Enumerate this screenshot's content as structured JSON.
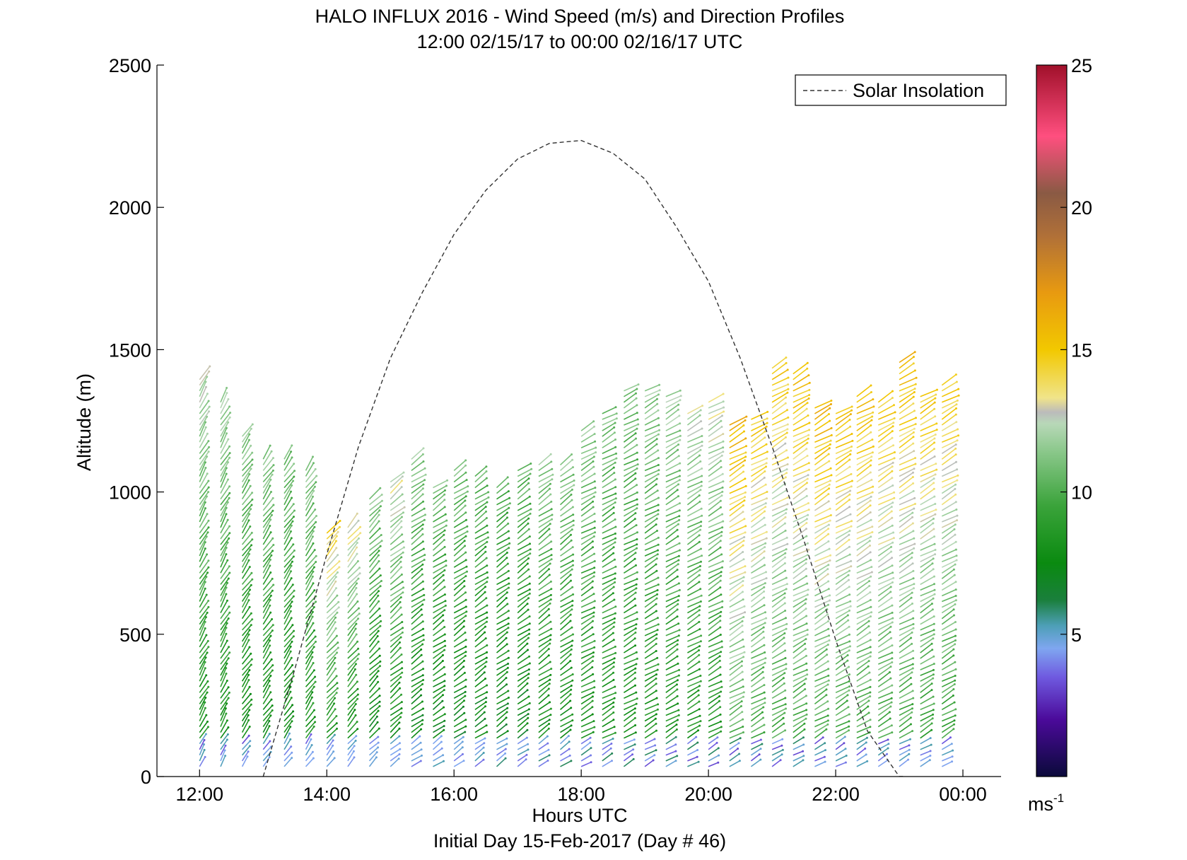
{
  "chart_data": {
    "type": "wind-barb-profile",
    "title": "HALO INFLUX 2016 - Wind Speed (m/s) and Direction Profiles",
    "subtitle": "12:00 02/15/17 to 00:00 02/16/17  UTC",
    "xlabel": "Hours UTC",
    "footer": "Initial Day 15-Feb-2017 (Day # 46)",
    "ylabel": "Altitude (m)",
    "x_range_hours": [
      11.33,
      24.6
    ],
    "ylim": [
      0,
      2500
    ],
    "x_ticks": [
      {
        "hour": 12,
        "label": "12:00"
      },
      {
        "hour": 14,
        "label": "14:00"
      },
      {
        "hour": 16,
        "label": "16:00"
      },
      {
        "hour": 18,
        "label": "18:00"
      },
      {
        "hour": 20,
        "label": "20:00"
      },
      {
        "hour": 22,
        "label": "22:00"
      },
      {
        "hour": 24,
        "label": "00:00"
      }
    ],
    "y_ticks": [
      0,
      500,
      1000,
      1500,
      2000,
      2500
    ],
    "legend": {
      "label": "Solar Insolation",
      "position": "top-right"
    },
    "colorbar": {
      "range": [
        0,
        25
      ],
      "ticks": [
        5,
        10,
        15,
        20,
        25
      ],
      "unit_label": "ms",
      "unit_exponent": "-1",
      "stops": [
        {
          "v": 0,
          "c": "#0a0a3a"
        },
        {
          "v": 2,
          "c": "#4b0a9a"
        },
        {
          "v": 3.5,
          "c": "#6f5ae0"
        },
        {
          "v": 4.5,
          "c": "#7fa6f0"
        },
        {
          "v": 5.3,
          "c": "#4d9fb7"
        },
        {
          "v": 6.2,
          "c": "#1a7f3c"
        },
        {
          "v": 7.5,
          "c": "#0a8a10"
        },
        {
          "v": 9.5,
          "c": "#3aa33a"
        },
        {
          "v": 11.5,
          "c": "#8ec98e"
        },
        {
          "v": 12.4,
          "c": "#b8d8b8"
        },
        {
          "v": 12.8,
          "c": "#bbbbbb"
        },
        {
          "v": 13.3,
          "c": "#f0e48a"
        },
        {
          "v": 15,
          "c": "#f2c800"
        },
        {
          "v": 17,
          "c": "#e89a10"
        },
        {
          "v": 19,
          "c": "#b07038"
        },
        {
          "v": 20.5,
          "c": "#8a5a44"
        },
        {
          "v": 22.5,
          "c": "#ff4f7f"
        },
        {
          "v": 25,
          "c": "#a0102a"
        }
      ]
    },
    "solar_insolation": {
      "hours": [
        13.0,
        13.5,
        14.0,
        14.5,
        15.0,
        15.5,
        16.0,
        16.5,
        17.0,
        17.5,
        18.0,
        18.5,
        19.0,
        19.5,
        20.0,
        20.5,
        21.0,
        21.5,
        22.0,
        22.5,
        23.0,
        23.1
      ],
      "altitude": [
        0,
        380,
        780,
        1160,
        1470,
        1700,
        1905,
        2060,
        2170,
        2225,
        2235,
        2190,
        2100,
        1930,
        1740,
        1470,
        1160,
        830,
        480,
        160,
        0,
        0
      ]
    },
    "wind_profiles": [
      {
        "hour": 12.0,
        "top": 1410,
        "speed_low": 8.0,
        "speed_high": 12.5,
        "dir": 150
      },
      {
        "hour": 12.33,
        "top": 1320,
        "speed_low": 8.0,
        "speed_high": 12.0,
        "dir": 150
      },
      {
        "hour": 12.67,
        "top": 1200,
        "speed_low": 7.5,
        "speed_high": 11.5,
        "dir": 145
      },
      {
        "hour": 13.0,
        "top": 1130,
        "speed_low": 7.5,
        "speed_high": 11.5,
        "dir": 145
      },
      {
        "hour": 13.33,
        "top": 1120,
        "speed_low": 7.5,
        "speed_high": 11.0,
        "dir": 145
      },
      {
        "hour": 13.67,
        "top": 1090,
        "speed_low": 8.0,
        "speed_high": 11.5,
        "dir": 145
      },
      {
        "hour": 14.0,
        "top": 870,
        "speed_low": 8.0,
        "speed_high": 14.5,
        "dir": 140
      },
      {
        "hour": 14.33,
        "top": 880,
        "speed_low": 7.5,
        "speed_high": 13.5,
        "dir": 140
      },
      {
        "hour": 14.67,
        "top": 990,
        "speed_low": 7.0,
        "speed_high": 11.5,
        "dir": 135
      },
      {
        "hour": 15.0,
        "top": 1040,
        "speed_low": 7.5,
        "speed_high": 13.0,
        "dir": 130
      },
      {
        "hour": 15.33,
        "top": 1120,
        "speed_low": 7.0,
        "speed_high": 11.5,
        "dir": 125
      },
      {
        "hour": 15.67,
        "top": 1030,
        "speed_low": 7.0,
        "speed_high": 11.0,
        "dir": 125
      },
      {
        "hour": 16.0,
        "top": 1090,
        "speed_low": 7.0,
        "speed_high": 11.0,
        "dir": 125
      },
      {
        "hour": 16.33,
        "top": 1060,
        "speed_low": 7.0,
        "speed_high": 10.5,
        "dir": 125
      },
      {
        "hour": 16.67,
        "top": 1020,
        "speed_low": 7.0,
        "speed_high": 10.0,
        "dir": 125
      },
      {
        "hour": 17.0,
        "top": 1090,
        "speed_low": 7.0,
        "speed_high": 10.5,
        "dir": 125
      },
      {
        "hour": 17.33,
        "top": 1110,
        "speed_low": 7.5,
        "speed_high": 11.5,
        "dir": 125
      },
      {
        "hour": 17.67,
        "top": 1110,
        "speed_low": 7.5,
        "speed_high": 11.5,
        "dir": 125
      },
      {
        "hour": 18.0,
        "top": 1230,
        "speed_low": 8.0,
        "speed_high": 11.5,
        "dir": 120
      },
      {
        "hour": 18.33,
        "top": 1280,
        "speed_low": 8.0,
        "speed_high": 11.0,
        "dir": 120
      },
      {
        "hour": 18.67,
        "top": 1360,
        "speed_low": 8.0,
        "speed_high": 11.0,
        "dir": 120
      },
      {
        "hour": 19.0,
        "top": 1360,
        "speed_low": 8.0,
        "speed_high": 11.5,
        "dir": 120
      },
      {
        "hour": 19.33,
        "top": 1340,
        "speed_low": 8.0,
        "speed_high": 12.0,
        "dir": 120
      },
      {
        "hour": 19.67,
        "top": 1280,
        "speed_low": 8.0,
        "speed_high": 12.5,
        "dir": 120
      },
      {
        "hour": 20.0,
        "top": 1320,
        "speed_low": 8.0,
        "speed_high": 13.0,
        "dir": 120
      },
      {
        "hour": 20.33,
        "top": 1250,
        "speed_low": 10.0,
        "speed_high": 16.0,
        "dir": 120
      },
      {
        "hour": 20.67,
        "top": 1260,
        "speed_low": 9.5,
        "speed_high": 15.0,
        "dir": 120
      },
      {
        "hour": 21.0,
        "top": 1440,
        "speed_low": 9.5,
        "speed_high": 15.0,
        "dir": 120
      },
      {
        "hour": 21.33,
        "top": 1420,
        "speed_low": 9.5,
        "speed_high": 15.5,
        "dir": 120
      },
      {
        "hour": 21.67,
        "top": 1300,
        "speed_low": 9.5,
        "speed_high": 16.0,
        "dir": 120
      },
      {
        "hour": 22.0,
        "top": 1290,
        "speed_low": 9.5,
        "speed_high": 15.5,
        "dir": 120
      },
      {
        "hour": 22.33,
        "top": 1340,
        "speed_low": 9.5,
        "speed_high": 15.5,
        "dir": 120
      },
      {
        "hour": 22.67,
        "top": 1330,
        "speed_low": 9.5,
        "speed_high": 15.0,
        "dir": 120
      },
      {
        "hour": 23.0,
        "top": 1460,
        "speed_low": 9.5,
        "speed_high": 15.5,
        "dir": 120
      },
      {
        "hour": 23.33,
        "top": 1340,
        "speed_low": 9.0,
        "speed_high": 15.0,
        "dir": 120
      },
      {
        "hour": 23.67,
        "top": 1390,
        "speed_low": 9.0,
        "speed_high": 15.0,
        "dir": 120
      }
    ]
  }
}
